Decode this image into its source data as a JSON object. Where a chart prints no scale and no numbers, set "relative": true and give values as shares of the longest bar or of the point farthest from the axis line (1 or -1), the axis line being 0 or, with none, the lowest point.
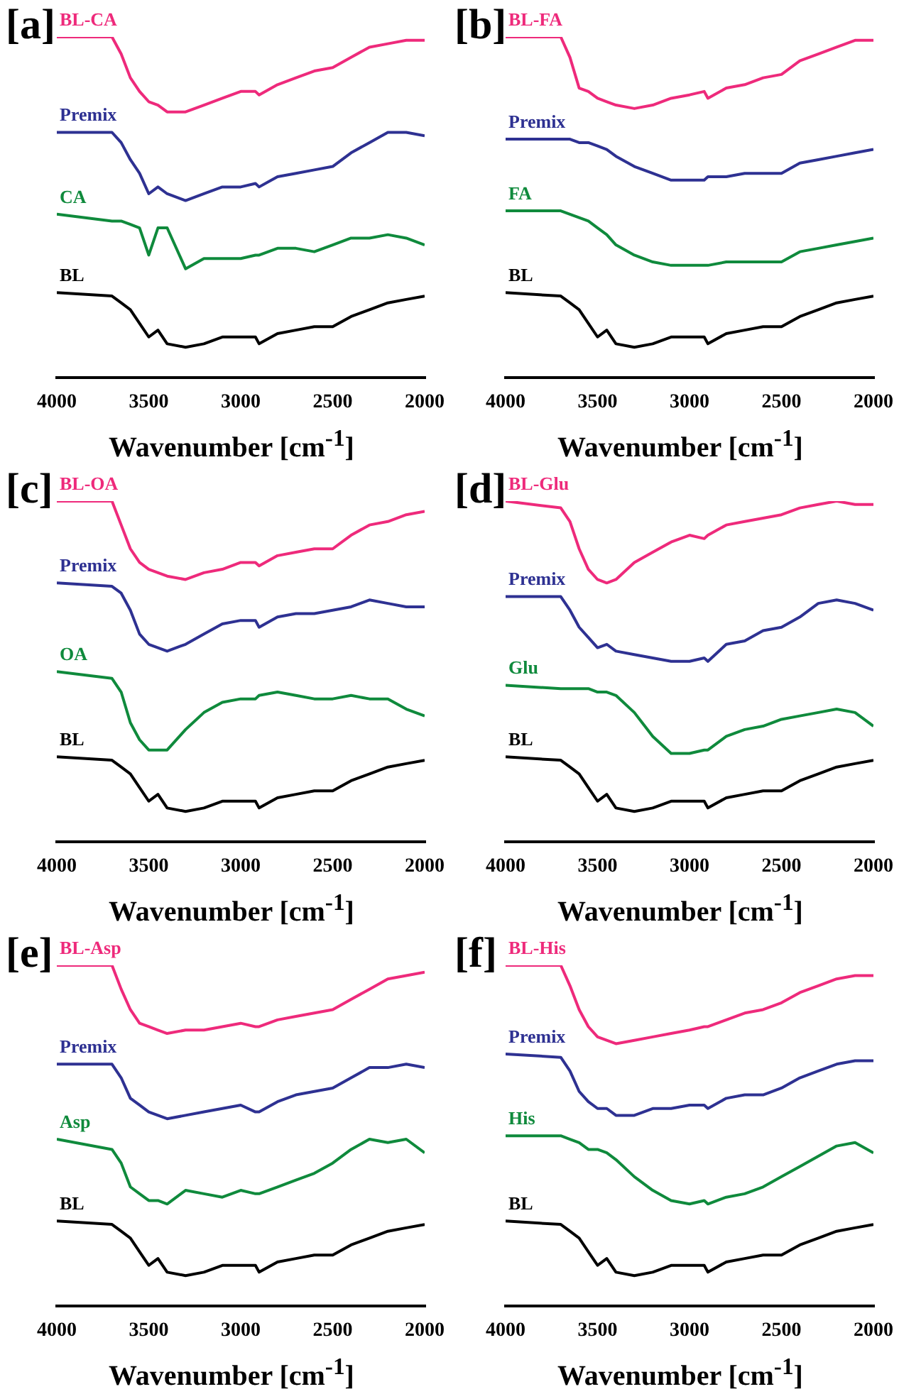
{
  "chart_data": [
    {
      "type": "line",
      "title": "[a]",
      "xlabel": "Wavenumber [cm$^{-1}$]",
      "relative": true,
      "grid": false,
      "legend": false,
      "xlim": [
        4000,
        2000
      ],
      "xticks": [
        4000,
        3500,
        3000,
        2500,
        2000
      ],
      "x": [
        4000,
        3700,
        3650,
        3600,
        3550,
        3500,
        3450,
        3400,
        3300,
        3200,
        3100,
        3000,
        2920,
        2900,
        2800,
        2700,
        2600,
        2500,
        2400,
        2300,
        2200,
        2100,
        2000
      ],
      "series": [
        {
          "name": "BL-CA",
          "color": "#ee2a7b",
          "values": [
            1.0,
            1.0,
            0.95,
            0.88,
            0.84,
            0.81,
            0.8,
            0.78,
            0.78,
            0.8,
            0.82,
            0.84,
            0.84,
            0.83,
            0.86,
            0.88,
            0.9,
            0.91,
            0.94,
            0.97,
            0.98,
            0.99,
            0.99
          ]
        },
        {
          "name": "Premix",
          "color": "#2e3192",
          "values": [
            0.72,
            0.72,
            0.69,
            0.64,
            0.6,
            0.54,
            0.56,
            0.54,
            0.52,
            0.54,
            0.56,
            0.56,
            0.57,
            0.56,
            0.59,
            0.6,
            0.61,
            0.62,
            0.66,
            0.69,
            0.72,
            0.72,
            0.71
          ]
        },
        {
          "name": "CA",
          "color": "#0f8a3c",
          "values": [
            0.48,
            0.46,
            0.46,
            0.45,
            0.44,
            0.36,
            0.44,
            0.44,
            0.32,
            0.35,
            0.35,
            0.35,
            0.36,
            0.36,
            0.38,
            0.38,
            0.37,
            0.39,
            0.41,
            0.41,
            0.42,
            0.41,
            0.39
          ]
        },
        {
          "name": "BL",
          "color": "#000000",
          "values": [
            0.25,
            0.24,
            0.22,
            0.2,
            0.16,
            0.12,
            0.14,
            0.1,
            0.09,
            0.1,
            0.12,
            0.12,
            0.12,
            0.1,
            0.13,
            0.14,
            0.15,
            0.15,
            0.18,
            0.2,
            0.22,
            0.23,
            0.24
          ]
        }
      ]
    },
    {
      "type": "line",
      "title": "[b]",
      "xlabel": "Wavenumber [cm$^{-1}$]",
      "relative": true,
      "grid": false,
      "legend": false,
      "xlim": [
        4000,
        2000
      ],
      "xticks": [
        4000,
        3500,
        3000,
        2500,
        2000
      ],
      "x": [
        4000,
        3700,
        3650,
        3600,
        3550,
        3500,
        3450,
        3400,
        3300,
        3200,
        3100,
        3000,
        2920,
        2900,
        2800,
        2700,
        2600,
        2500,
        2400,
        2300,
        2200,
        2100,
        2000
      ],
      "series": [
        {
          "name": "BL-FA",
          "color": "#ee2a7b",
          "values": [
            1.0,
            1.0,
            0.94,
            0.85,
            0.84,
            0.82,
            0.81,
            0.8,
            0.79,
            0.8,
            0.82,
            0.83,
            0.84,
            0.82,
            0.85,
            0.86,
            0.88,
            0.89,
            0.93,
            0.95,
            0.97,
            0.99,
            0.99
          ]
        },
        {
          "name": "Premix",
          "color": "#2e3192",
          "values": [
            0.7,
            0.7,
            0.7,
            0.69,
            0.69,
            0.68,
            0.67,
            0.65,
            0.62,
            0.6,
            0.58,
            0.58,
            0.58,
            0.59,
            0.59,
            0.6,
            0.6,
            0.6,
            0.63,
            0.64,
            0.65,
            0.66,
            0.67
          ]
        },
        {
          "name": "FA",
          "color": "#0f8a3c",
          "values": [
            0.49,
            0.49,
            0.48,
            0.47,
            0.46,
            0.44,
            0.42,
            0.39,
            0.36,
            0.34,
            0.33,
            0.33,
            0.33,
            0.33,
            0.34,
            0.34,
            0.34,
            0.34,
            0.37,
            0.38,
            0.39,
            0.4,
            0.41
          ]
        },
        {
          "name": "BL",
          "color": "#000000",
          "values": [
            0.25,
            0.24,
            0.22,
            0.2,
            0.16,
            0.12,
            0.14,
            0.1,
            0.09,
            0.1,
            0.12,
            0.12,
            0.12,
            0.1,
            0.13,
            0.14,
            0.15,
            0.15,
            0.18,
            0.2,
            0.22,
            0.23,
            0.24
          ]
        }
      ]
    },
    {
      "type": "line",
      "title": "[c]",
      "xlabel": "Wavenumber [cm$^{-1}$]",
      "relative": true,
      "grid": false,
      "legend": false,
      "xlim": [
        4000,
        2000
      ],
      "xticks": [
        4000,
        3500,
        3000,
        2500,
        2000
      ],
      "x": [
        4000,
        3700,
        3650,
        3600,
        3550,
        3500,
        3450,
        3400,
        3300,
        3200,
        3100,
        3000,
        2920,
        2900,
        2800,
        2700,
        2600,
        2500,
        2400,
        2300,
        2200,
        2100,
        2000
      ],
      "series": [
        {
          "name": "BL-OA",
          "color": "#ee2a7b",
          "values": [
            1.0,
            1.0,
            0.93,
            0.86,
            0.82,
            0.8,
            0.79,
            0.78,
            0.77,
            0.79,
            0.8,
            0.82,
            0.82,
            0.81,
            0.84,
            0.85,
            0.86,
            0.86,
            0.9,
            0.93,
            0.94,
            0.96,
            0.97
          ]
        },
        {
          "name": "Premix",
          "color": "#2e3192",
          "values": [
            0.76,
            0.75,
            0.73,
            0.68,
            0.61,
            0.58,
            0.57,
            0.56,
            0.58,
            0.61,
            0.64,
            0.65,
            0.65,
            0.63,
            0.66,
            0.67,
            0.67,
            0.68,
            0.69,
            0.71,
            0.7,
            0.69,
            0.69
          ]
        },
        {
          "name": "OA",
          "color": "#0f8a3c",
          "values": [
            0.5,
            0.48,
            0.44,
            0.35,
            0.3,
            0.27,
            0.27,
            0.27,
            0.33,
            0.38,
            0.41,
            0.42,
            0.42,
            0.43,
            0.44,
            0.43,
            0.42,
            0.42,
            0.43,
            0.42,
            0.42,
            0.39,
            0.37
          ]
        },
        {
          "name": "BL",
          "color": "#000000",
          "values": [
            0.25,
            0.24,
            0.22,
            0.2,
            0.16,
            0.12,
            0.14,
            0.1,
            0.09,
            0.1,
            0.12,
            0.12,
            0.12,
            0.1,
            0.13,
            0.14,
            0.15,
            0.15,
            0.18,
            0.2,
            0.22,
            0.23,
            0.24
          ]
        }
      ]
    },
    {
      "type": "line",
      "title": "[d]",
      "xlabel": "Wavenumber [cm$^{-1}$]",
      "relative": true,
      "grid": false,
      "legend": false,
      "xlim": [
        4000,
        2000
      ],
      "xticks": [
        4000,
        3500,
        3000,
        2500,
        2000
      ],
      "x": [
        4000,
        3700,
        3650,
        3600,
        3550,
        3500,
        3450,
        3400,
        3300,
        3200,
        3100,
        3000,
        2920,
        2900,
        2800,
        2700,
        2600,
        2500,
        2400,
        2300,
        2200,
        2100,
        2000
      ],
      "series": [
        {
          "name": "BL-Glu",
          "color": "#ee2a7b",
          "values": [
            1.0,
            0.98,
            0.94,
            0.86,
            0.8,
            0.77,
            0.76,
            0.77,
            0.82,
            0.85,
            0.88,
            0.9,
            0.89,
            0.9,
            0.93,
            0.94,
            0.95,
            0.96,
            0.98,
            0.99,
            1.0,
            0.99,
            0.99
          ]
        },
        {
          "name": "Premix",
          "color": "#2e3192",
          "values": [
            0.72,
            0.72,
            0.68,
            0.63,
            0.6,
            0.57,
            0.58,
            0.56,
            0.55,
            0.54,
            0.53,
            0.53,
            0.54,
            0.53,
            0.58,
            0.59,
            0.62,
            0.63,
            0.66,
            0.7,
            0.71,
            0.7,
            0.68
          ]
        },
        {
          "name": "Glu",
          "color": "#0f8a3c",
          "values": [
            0.46,
            0.45,
            0.45,
            0.45,
            0.45,
            0.44,
            0.44,
            0.43,
            0.38,
            0.31,
            0.26,
            0.26,
            0.27,
            0.27,
            0.31,
            0.33,
            0.34,
            0.36,
            0.37,
            0.38,
            0.39,
            0.38,
            0.34
          ]
        },
        {
          "name": "BL",
          "color": "#000000",
          "values": [
            0.25,
            0.24,
            0.22,
            0.2,
            0.16,
            0.12,
            0.14,
            0.1,
            0.09,
            0.1,
            0.12,
            0.12,
            0.12,
            0.1,
            0.13,
            0.14,
            0.15,
            0.15,
            0.18,
            0.2,
            0.22,
            0.23,
            0.24
          ]
        }
      ]
    },
    {
      "type": "line",
      "title": "[e]",
      "xlabel": "Wavenumber [cm$^{-1}$]",
      "relative": true,
      "grid": false,
      "legend": false,
      "xlim": [
        4000,
        2000
      ],
      "xticks": [
        4000,
        3500,
        3000,
        2500,
        2000
      ],
      "x": [
        4000,
        3700,
        3650,
        3600,
        3550,
        3500,
        3450,
        3400,
        3300,
        3200,
        3100,
        3000,
        2920,
        2900,
        2800,
        2700,
        2600,
        2500,
        2400,
        2300,
        2200,
        2100,
        2000
      ],
      "series": [
        {
          "name": "BL-Asp",
          "color": "#ee2a7b",
          "values": [
            1.0,
            1.0,
            0.93,
            0.87,
            0.83,
            0.82,
            0.81,
            0.8,
            0.81,
            0.81,
            0.82,
            0.83,
            0.82,
            0.82,
            0.84,
            0.85,
            0.86,
            0.87,
            0.9,
            0.93,
            0.96,
            0.97,
            0.98
          ]
        },
        {
          "name": "Premix",
          "color": "#2e3192",
          "values": [
            0.71,
            0.71,
            0.67,
            0.61,
            0.59,
            0.57,
            0.56,
            0.55,
            0.56,
            0.57,
            0.58,
            0.59,
            0.57,
            0.57,
            0.6,
            0.62,
            0.63,
            0.64,
            0.67,
            0.7,
            0.7,
            0.71,
            0.7
          ]
        },
        {
          "name": "Asp",
          "color": "#0f8a3c",
          "values": [
            0.49,
            0.46,
            0.42,
            0.35,
            0.33,
            0.31,
            0.31,
            0.3,
            0.34,
            0.33,
            0.32,
            0.34,
            0.33,
            0.33,
            0.35,
            0.37,
            0.39,
            0.42,
            0.46,
            0.49,
            0.48,
            0.49,
            0.45
          ]
        },
        {
          "name": "BL",
          "color": "#000000",
          "values": [
            0.25,
            0.24,
            0.22,
            0.2,
            0.16,
            0.12,
            0.14,
            0.1,
            0.09,
            0.1,
            0.12,
            0.12,
            0.12,
            0.1,
            0.13,
            0.14,
            0.15,
            0.15,
            0.18,
            0.2,
            0.22,
            0.23,
            0.24
          ]
        }
      ]
    },
    {
      "type": "line",
      "title": "[f]",
      "xlabel": "Wavenumber [cm$^{-1}$]",
      "relative": true,
      "grid": false,
      "legend": false,
      "xlim": [
        4000,
        2000
      ],
      "xticks": [
        4000,
        3500,
        3000,
        2500,
        2000
      ],
      "x": [
        4000,
        3700,
        3650,
        3600,
        3550,
        3500,
        3450,
        3400,
        3300,
        3200,
        3100,
        3000,
        2920,
        2900,
        2800,
        2700,
        2600,
        2500,
        2400,
        2300,
        2200,
        2100,
        2000
      ],
      "series": [
        {
          "name": "BL-His",
          "color": "#ee2a7b",
          "values": [
            1.0,
            1.0,
            0.94,
            0.87,
            0.82,
            0.79,
            0.78,
            0.77,
            0.78,
            0.79,
            0.8,
            0.81,
            0.82,
            0.82,
            0.84,
            0.86,
            0.87,
            0.89,
            0.92,
            0.94,
            0.96,
            0.97,
            0.97
          ]
        },
        {
          "name": "Premix",
          "color": "#2e3192",
          "values": [
            0.74,
            0.73,
            0.69,
            0.63,
            0.6,
            0.58,
            0.58,
            0.56,
            0.56,
            0.58,
            0.58,
            0.59,
            0.59,
            0.58,
            0.61,
            0.62,
            0.62,
            0.64,
            0.67,
            0.69,
            0.71,
            0.72,
            0.72
          ]
        },
        {
          "name": "His",
          "color": "#0f8a3c",
          "values": [
            0.5,
            0.5,
            0.49,
            0.48,
            0.46,
            0.46,
            0.45,
            0.43,
            0.38,
            0.34,
            0.31,
            0.3,
            0.31,
            0.3,
            0.32,
            0.33,
            0.35,
            0.38,
            0.41,
            0.44,
            0.47,
            0.48,
            0.45
          ]
        },
        {
          "name": "BL",
          "color": "#000000",
          "values": [
            0.25,
            0.24,
            0.22,
            0.2,
            0.16,
            0.12,
            0.14,
            0.1,
            0.09,
            0.1,
            0.12,
            0.12,
            0.12,
            0.1,
            0.13,
            0.14,
            0.15,
            0.15,
            0.18,
            0.2,
            0.22,
            0.23,
            0.24
          ]
        }
      ]
    }
  ]
}
